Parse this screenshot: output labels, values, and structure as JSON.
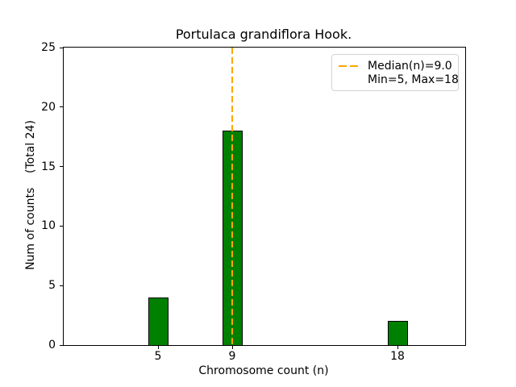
{
  "chart_data": {
    "type": "bar",
    "title": "Portulaca grandiflora Hook.",
    "xlabel": "Chromosome count (n)",
    "ylabel": "Num of counts    (Total 24)",
    "categories": [
      5,
      9,
      18
    ],
    "values": [
      4,
      18,
      2
    ],
    "total_counts": 24,
    "median_n": 9.0,
    "min_n": 5,
    "max_n": 18,
    "ylim": [
      0,
      25
    ],
    "y_tick_labels": [
      "0",
      "5",
      "10",
      "15",
      "20",
      "25"
    ],
    "x_tick_labels": [
      "5",
      "9",
      "18"
    ],
    "grid": false,
    "legend": {
      "position": "upper right",
      "entries": [
        "Median(n)=9.0",
        "Min=5, Max=18"
      ]
    },
    "colors": {
      "bar_fill": "#008000",
      "bar_edge": "#000000",
      "median_line": "#FFA500",
      "axes_text": "#000000",
      "legend_border": "#d2d2d2",
      "background": "#ffffff"
    }
  }
}
